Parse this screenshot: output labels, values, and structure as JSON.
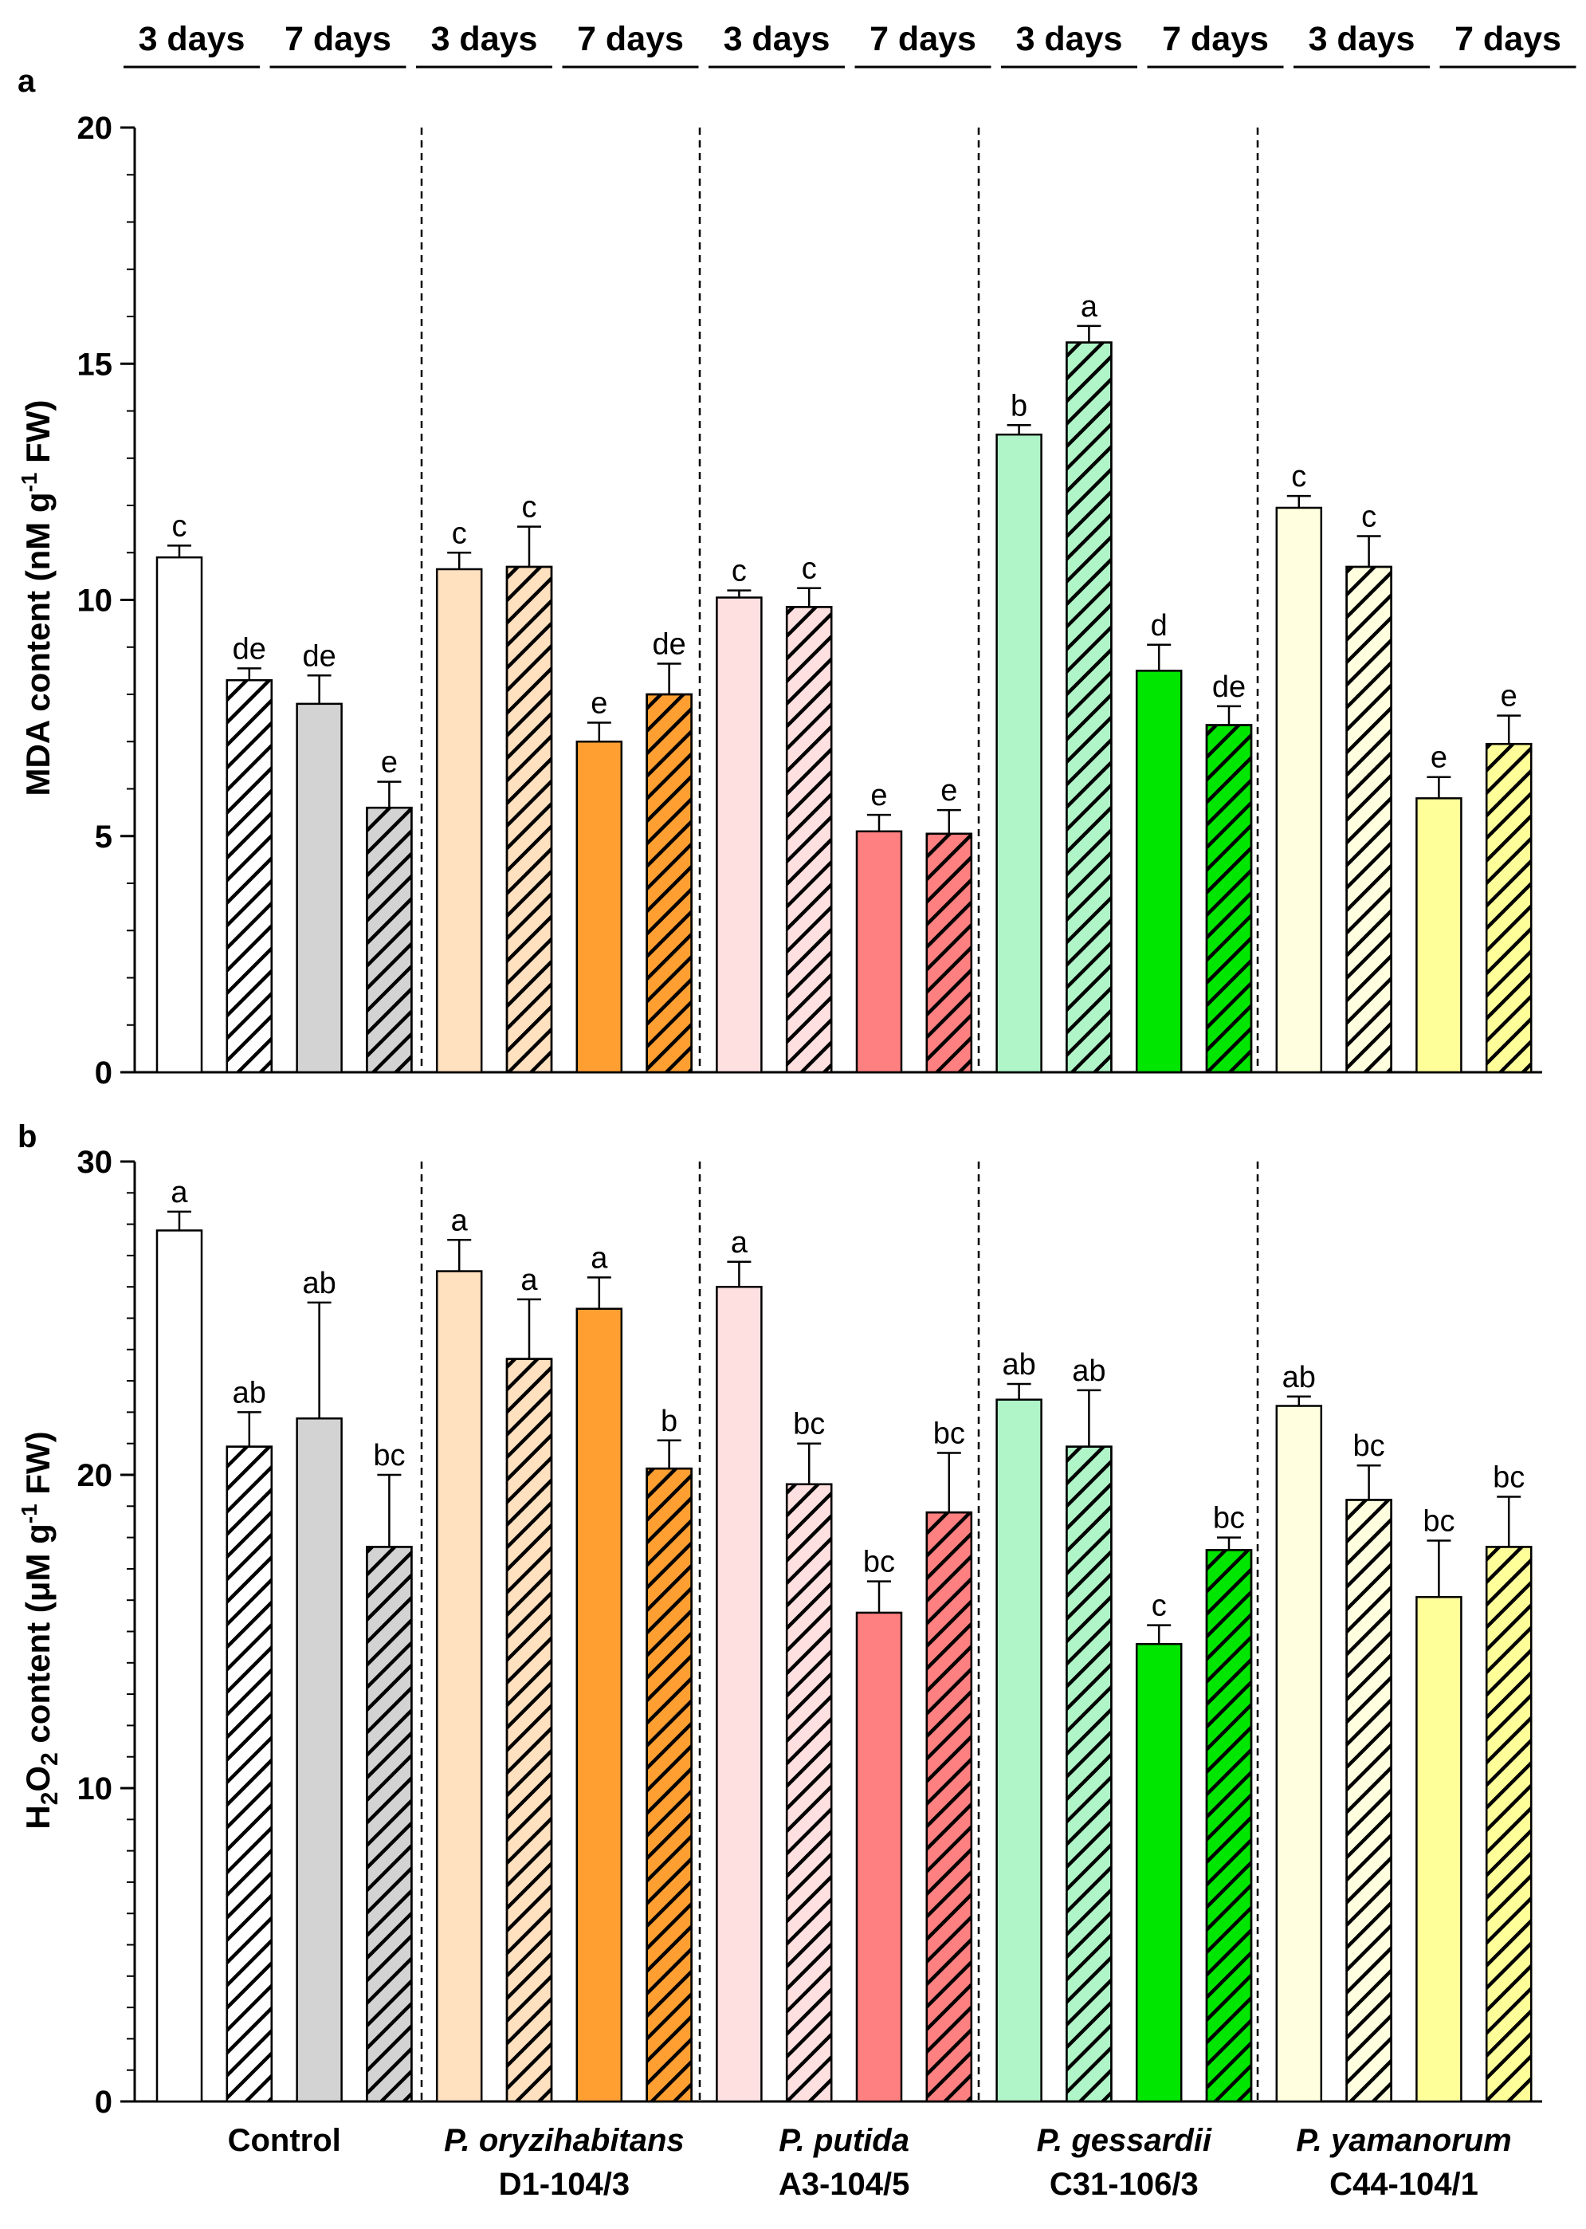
{
  "chart_data": [
    {
      "type": "bar",
      "panel_label": "a",
      "ylabel_parts": [
        "MDA content (nM g",
        "-1",
        " FW)"
      ],
      "ylim": [
        0,
        20
      ],
      "yticks": [
        0,
        5,
        10,
        15,
        20
      ],
      "grid": false,
      "bars": [
        {
          "group": "Control",
          "period": "3 days",
          "value": 10.9,
          "error": 0.25,
          "letter": "c",
          "fill": "#ffffff",
          "hatched": false
        },
        {
          "group": "Control",
          "period": "3 days",
          "value": 8.3,
          "error": 0.25,
          "letter": "de",
          "fill": "#ffffff",
          "hatched": true
        },
        {
          "group": "Control",
          "period": "7 days",
          "value": 7.8,
          "error": 0.6,
          "letter": "de",
          "fill": "#d3d3d3",
          "hatched": false
        },
        {
          "group": "Control",
          "period": "7 days",
          "value": 5.6,
          "error": 0.55,
          "letter": "e",
          "fill": "#d3d3d3",
          "hatched": true
        },
        {
          "group": "P. oryzihabitans D1-104/3",
          "period": "3 days",
          "value": 10.65,
          "error": 0.35,
          "letter": "c",
          "fill": "#ffe0bf",
          "hatched": false
        },
        {
          "group": "P. oryzihabitans D1-104/3",
          "period": "3 days",
          "value": 10.7,
          "error": 0.85,
          "letter": "c",
          "fill": "#ffe0bf",
          "hatched": true
        },
        {
          "group": "P. oryzihabitans D1-104/3",
          "period": "7 days",
          "value": 7.0,
          "error": 0.4,
          "letter": "e",
          "fill": "#ff9f32",
          "hatched": false
        },
        {
          "group": "P. oryzihabitans D1-104/3",
          "period": "7 days",
          "value": 8.0,
          "error": 0.65,
          "letter": "de",
          "fill": "#ff9f32",
          "hatched": true
        },
        {
          "group": "P. putida A3-104/5",
          "period": "3 days",
          "value": 10.05,
          "error": 0.15,
          "letter": "c",
          "fill": "#ffe0e0",
          "hatched": false
        },
        {
          "group": "P. putida A3-104/5",
          "period": "3 days",
          "value": 9.85,
          "error": 0.4,
          "letter": "c",
          "fill": "#ffe0e0",
          "hatched": true
        },
        {
          "group": "P. putida A3-104/5",
          "period": "7 days",
          "value": 5.1,
          "error": 0.35,
          "letter": "e",
          "fill": "#ff8080",
          "hatched": false
        },
        {
          "group": "P. putida A3-104/5",
          "period": "7 days",
          "value": 5.05,
          "error": 0.5,
          "letter": "e",
          "fill": "#ff8080",
          "hatched": true
        },
        {
          "group": "P. gessardii C31-106/3",
          "period": "3 days",
          "value": 13.5,
          "error": 0.2,
          "letter": "b",
          "fill": "#b0f5c8",
          "hatched": false
        },
        {
          "group": "P. gessardii C31-106/3",
          "period": "3 days",
          "value": 15.45,
          "error": 0.35,
          "letter": "a",
          "fill": "#b0f5c8",
          "hatched": true
        },
        {
          "group": "P. gessardii C31-106/3",
          "period": "7 days",
          "value": 8.5,
          "error": 0.55,
          "letter": "d",
          "fill": "#00e600",
          "hatched": false
        },
        {
          "group": "P. gessardii C31-106/3",
          "period": "7 days",
          "value": 7.35,
          "error": 0.4,
          "letter": "de",
          "fill": "#00e600",
          "hatched": true
        },
        {
          "group": "P. yamanorum C44-104/1",
          "period": "3 days",
          "value": 11.95,
          "error": 0.25,
          "letter": "c",
          "fill": "#ffffe0",
          "hatched": false
        },
        {
          "group": "P. yamanorum C44-104/1",
          "period": "3 days",
          "value": 10.7,
          "error": 0.65,
          "letter": "c",
          "fill": "#ffffe0",
          "hatched": true
        },
        {
          "group": "P. yamanorum C44-104/1",
          "period": "7 days",
          "value": 5.8,
          "error": 0.45,
          "letter": "e",
          "fill": "#ffff9a",
          "hatched": false
        },
        {
          "group": "P. yamanorum C44-104/1",
          "period": "7 days",
          "value": 6.95,
          "error": 0.6,
          "letter": "e",
          "fill": "#ffff9a",
          "hatched": true
        }
      ]
    },
    {
      "type": "bar",
      "panel_label": "b",
      "ylabel_parts": [
        "H",
        "2",
        "O",
        "2",
        " content (μM g",
        "-1",
        " FW)"
      ],
      "ylim": [
        0,
        30
      ],
      "yticks": [
        0,
        10,
        20,
        30
      ],
      "grid": false,
      "bars": [
        {
          "group": "Control",
          "period": "3 days",
          "value": 27.8,
          "error": 0.6,
          "letter": "a",
          "fill": "#ffffff",
          "hatched": false
        },
        {
          "group": "Control",
          "period": "3 days",
          "value": 20.9,
          "error": 1.1,
          "letter": "ab",
          "fill": "#ffffff",
          "hatched": true
        },
        {
          "group": "Control",
          "period": "7 days",
          "value": 21.8,
          "error": 3.7,
          "letter": "ab",
          "fill": "#d3d3d3",
          "hatched": false
        },
        {
          "group": "Control",
          "period": "7 days",
          "value": 17.7,
          "error": 2.3,
          "letter": "bc",
          "fill": "#d3d3d3",
          "hatched": true
        },
        {
          "group": "P. oryzihabitans D1-104/3",
          "period": "3 days",
          "value": 26.5,
          "error": 1.0,
          "letter": "a",
          "fill": "#ffe0bf",
          "hatched": false
        },
        {
          "group": "P. oryzihabitans D1-104/3",
          "period": "3 days",
          "value": 23.7,
          "error": 1.9,
          "letter": "a",
          "fill": "#ffe0bf",
          "hatched": true
        },
        {
          "group": "P. oryzihabitans D1-104/3",
          "period": "7 days",
          "value": 25.3,
          "error": 1.0,
          "letter": "a",
          "fill": "#ff9f32",
          "hatched": false
        },
        {
          "group": "P. oryzihabitans D1-104/3",
          "period": "7 days",
          "value": 20.2,
          "error": 0.9,
          "letter": "b",
          "fill": "#ff9f32",
          "hatched": true
        },
        {
          "group": "P. putida A3-104/5",
          "period": "3 days",
          "value": 26.0,
          "error": 0.8,
          "letter": "a",
          "fill": "#ffe0e0",
          "hatched": false
        },
        {
          "group": "P. putida A3-104/5",
          "period": "3 days",
          "value": 19.7,
          "error": 1.3,
          "letter": "bc",
          "fill": "#ffe0e0",
          "hatched": true
        },
        {
          "group": "P. putida A3-104/5",
          "period": "7 days",
          "value": 15.6,
          "error": 1.0,
          "letter": "bc",
          "fill": "#ff8080",
          "hatched": false
        },
        {
          "group": "P. putida A3-104/5",
          "period": "7 days",
          "value": 18.8,
          "error": 1.9,
          "letter": "bc",
          "fill": "#ff8080",
          "hatched": true
        },
        {
          "group": "P. gessardii C31-106/3",
          "period": "3 days",
          "value": 22.4,
          "error": 0.5,
          "letter": "ab",
          "fill": "#b0f5c8",
          "hatched": false
        },
        {
          "group": "P. gessardii C31-106/3",
          "period": "3 days",
          "value": 20.9,
          "error": 1.8,
          "letter": "ab",
          "fill": "#b0f5c8",
          "hatched": true
        },
        {
          "group": "P. gessardii C31-106/3",
          "period": "7 days",
          "value": 14.6,
          "error": 0.6,
          "letter": "c",
          "fill": "#00e600",
          "hatched": false
        },
        {
          "group": "P. gessardii C31-106/3",
          "period": "7 days",
          "value": 17.6,
          "error": 0.4,
          "letter": "bc",
          "fill": "#00e600",
          "hatched": true
        },
        {
          "group": "P. yamanorum C44-104/1",
          "period": "3 days",
          "value": 22.2,
          "error": 0.3,
          "letter": "ab",
          "fill": "#ffffe0",
          "hatched": false
        },
        {
          "group": "P. yamanorum C44-104/1",
          "period": "3 days",
          "value": 19.2,
          "error": 1.1,
          "letter": "bc",
          "fill": "#ffffe0",
          "hatched": true
        },
        {
          "group": "P. yamanorum C44-104/1",
          "period": "7 days",
          "value": 16.1,
          "error": 1.8,
          "letter": "bc",
          "fill": "#ffff9a",
          "hatched": false
        },
        {
          "group": "P. yamanorum C44-104/1",
          "period": "7 days",
          "value": 17.7,
          "error": 1.6,
          "letter": "bc",
          "fill": "#ffff9a",
          "hatched": true
        }
      ]
    }
  ],
  "period_labels": [
    "3 days",
    "7 days",
    "3 days",
    "7 days",
    "3 days",
    "7 days",
    "3 days",
    "7 days",
    "3 days",
    "7 days"
  ],
  "groups": [
    {
      "species": "",
      "strain": "Control"
    },
    {
      "species": "P. oryzihabitans",
      "strain": "D1-104/3"
    },
    {
      "species": "P. putida",
      "strain": "A3-104/5"
    },
    {
      "species": "P. gessardii",
      "strain": "C31-106/3"
    },
    {
      "species": "P. yamanorum",
      "strain": "C44-104/1"
    }
  ]
}
